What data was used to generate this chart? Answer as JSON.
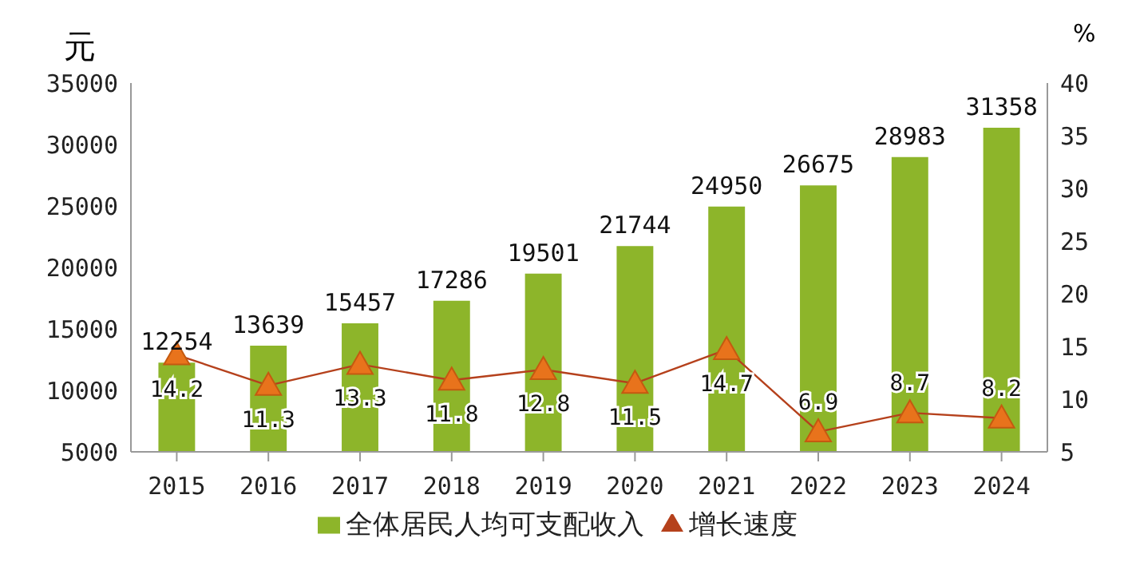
{
  "chart_data": {
    "type": "bar",
    "ylabel": "元",
    "y2label": "%",
    "categories": [
      "2015",
      "2016",
      "2017",
      "2018",
      "2019",
      "2020",
      "2021",
      "2022",
      "2023",
      "2024"
    ],
    "series": [
      {
        "name": "全体居民人均可支配收入",
        "color": "#8db52a",
        "values": [
          12254,
          13639,
          15457,
          17286,
          19501,
          21744,
          24950,
          26675,
          28983,
          31358
        ]
      },
      {
        "name": "增长速度",
        "type": "line",
        "axis": "y2",
        "color": "#e8731c",
        "marker": "triangle",
        "values": [
          14.2,
          11.3,
          13.3,
          11.8,
          12.8,
          11.5,
          14.7,
          6.9,
          8.7,
          8.2
        ]
      }
    ],
    "ylim": [
      5000,
      35000
    ],
    "yticks": [
      5000,
      10000,
      15000,
      20000,
      25000,
      30000,
      35000
    ],
    "y2lim": [
      5,
      40
    ],
    "y2ticks": [
      5,
      10,
      15,
      20,
      25,
      30,
      35,
      40
    ],
    "data_labels": true,
    "grid": false,
    "legend": "bottom"
  }
}
